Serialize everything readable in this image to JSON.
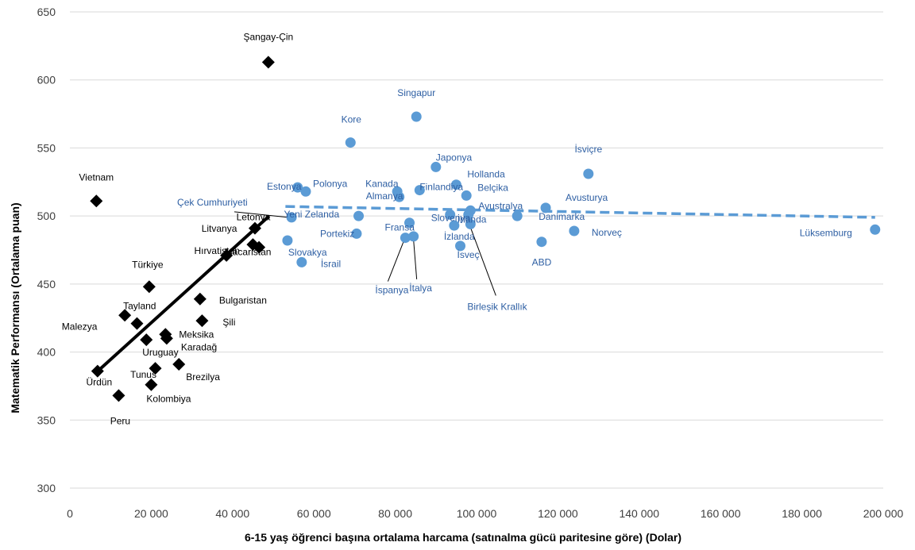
{
  "chart_data": {
    "type": "scatter",
    "xlabel": "6-15 yaş öğrenci başına ortalama harcama (satınalma gücü paritesine göre) (Dolar)",
    "ylabel": "Matematik Performansı (Ortalama puan)",
    "xlim": [
      0,
      200000
    ],
    "ylim": [
      300,
      650
    ],
    "x_ticks": [
      0,
      20000,
      40000,
      60000,
      80000,
      100000,
      120000,
      140000,
      160000,
      180000,
      200000
    ],
    "x_tick_labels": [
      "0",
      "20 000",
      "40 000",
      "60 000",
      "80 000",
      "100 000",
      "120 000",
      "140 000",
      "160 000",
      "180 000",
      "200 000"
    ],
    "y_ticks": [
      300,
      350,
      400,
      450,
      500,
      550,
      600,
      650
    ],
    "y_tick_labels": [
      "300",
      "350",
      "400",
      "450",
      "500",
      "550",
      "600",
      "650"
    ],
    "grid": "horizontal",
    "colors": {
      "low": "#000000",
      "high": "#5b9bd5",
      "high_text": "#2e5fa3",
      "grid": "#d9d9d9"
    },
    "series": [
      {
        "marker": "diamond",
        "color": "#000000",
        "points": [
          {
            "label": "Şangay-Çin",
            "x": 48800,
            "y": 613
          },
          {
            "label": "Vietnam",
            "x": 6500,
            "y": 511
          },
          {
            "label": "Letonya",
            "x": 45500,
            "y": 491
          },
          {
            "label": "Litvanya",
            "x": 45000,
            "y": 479
          },
          {
            "label": "Macaristan",
            "x": 46500,
            "y": 477
          },
          {
            "label": "Hırvatistan",
            "x": 38500,
            "y": 471
          },
          {
            "label": "Türkiye",
            "x": 19500,
            "y": 448
          },
          {
            "label": "Bulgaristan",
            "x": 32000,
            "y": 439
          },
          {
            "label": "Tayland",
            "x": 13500,
            "y": 427
          },
          {
            "label": "Şili",
            "x": 32500,
            "y": 423
          },
          {
            "label": "Malezya",
            "x": 16500,
            "y": 421
          },
          {
            "label": "Meksika",
            "x": 23500,
            "y": 413
          },
          {
            "label": "Karadağ",
            "x": 23800,
            "y": 410
          },
          {
            "label": "Uruguay",
            "x": 18800,
            "y": 409
          },
          {
            "label": "Brezilya",
            "x": 26800,
            "y": 391
          },
          {
            "label": "Tunus",
            "x": 21000,
            "y": 388
          },
          {
            "label": "Ürdün",
            "x": 6800,
            "y": 386
          },
          {
            "label": "Kolombiya",
            "x": 20000,
            "y": 376
          },
          {
            "label": "Peru",
            "x": 12000,
            "y": 368
          }
        ]
      },
      {
        "marker": "circle",
        "color": "#5b9bd5",
        "points": [
          {
            "label": "Singapur",
            "x": 85200,
            "y": 573
          },
          {
            "label": "Kore",
            "x": 69000,
            "y": 554
          },
          {
            "label": "Japonya",
            "x": 90000,
            "y": 536
          },
          {
            "label": "İsviçre",
            "x": 127500,
            "y": 531
          },
          {
            "label": "Hollanda",
            "x": 95000,
            "y": 523
          },
          {
            "label": "Estonya",
            "x": 56000,
            "y": 521
          },
          {
            "label": "Finlandiya",
            "x": 86000,
            "y": 519
          },
          {
            "label": "Polonya",
            "x": 58000,
            "y": 518
          },
          {
            "label": "Kanada",
            "x": 80500,
            "y": 518
          },
          {
            "label": "Almanya",
            "x": 81000,
            "y": 514
          },
          {
            "label": "Belçika",
            "x": 97500,
            "y": 515
          },
          {
            "label": "Avusturya",
            "x": 117000,
            "y": 506
          },
          {
            "label": "Avustralya",
            "x": 98500,
            "y": 504
          },
          {
            "label": "Yeni Zelanda",
            "x": 71000,
            "y": 500
          },
          {
            "label": "Slovenya",
            "x": 93500,
            "y": 501
          },
          {
            "label": "Danimarka",
            "x": 110000,
            "y": 500
          },
          {
            "label": "Çek Cumhuriyeti",
            "x": 54500,
            "y": 499
          },
          {
            "label": "Fransa",
            "x": 83500,
            "y": 495
          },
          {
            "label": "İrlanda",
            "x": 98000,
            "y": 501
          },
          {
            "label": "İzlanda",
            "x": 94500,
            "y": 493
          },
          {
            "label": "Lüksemburg",
            "x": 198000,
            "y": 490
          },
          {
            "label": "Norveç",
            "x": 124000,
            "y": 489
          },
          {
            "label": "Portekiz",
            "x": 70500,
            "y": 487
          },
          {
            "label": "Birleşik Krallık",
            "x": 98500,
            "y": 494
          },
          {
            "label": "İspanya",
            "x": 82500,
            "y": 484
          },
          {
            "label": "İtalya",
            "x": 84500,
            "y": 485
          },
          {
            "label": "Slovakya",
            "x": 53500,
            "y": 482
          },
          {
            "label": "ABD",
            "x": 116000,
            "y": 481
          },
          {
            "label": "İsveç",
            "x": 96000,
            "y": 478
          },
          {
            "label": "İsrail",
            "x": 57000,
            "y": 466
          }
        ]
      }
    ],
    "trendlines": [
      {
        "style": "solid",
        "color": "#000000",
        "x": [
          6500,
          49000
        ],
        "y": [
          385,
          500
        ]
      },
      {
        "style": "dashed",
        "color": "#5b9bd5",
        "x": [
          53000,
          198000
        ],
        "y": [
          507,
          499
        ]
      }
    ]
  }
}
